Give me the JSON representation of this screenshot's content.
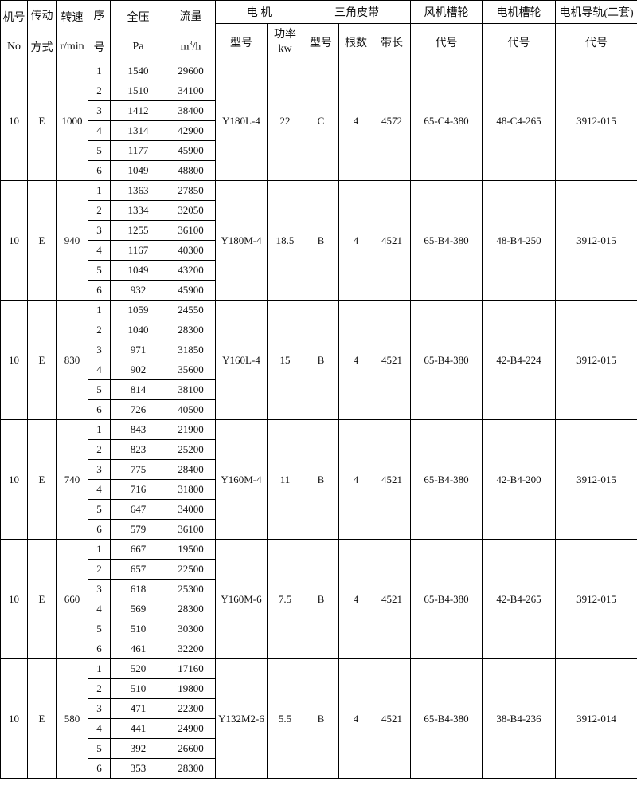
{
  "headers": {
    "machine_no": "机号",
    "machine_no_unit": "No",
    "drive": "传动",
    "drive_unit": "方式",
    "speed": "转速",
    "speed_unit": "r/min",
    "seq": "序",
    "seq_unit": "号",
    "pressure": "全压",
    "pressure_unit": "Pa",
    "flow": "流量",
    "flow_unit_base": "m",
    "flow_unit_sup": "3",
    "flow_unit_tail": "/h",
    "motor": "电  机",
    "motor_model": "型号",
    "motor_power": "功率",
    "motor_power_unit": "kw",
    "vbelt": "三角皮带",
    "belt_type": "型号",
    "belt_count": "根数",
    "belt_length": "带长",
    "fan_pulley": "风机槽轮",
    "fan_pulley_code": "代号",
    "motor_pulley": "电机槽轮",
    "motor_pulley_code": "代号",
    "motor_rail": "电机导轨(二套)",
    "motor_rail_code": "代号"
  },
  "groups": [
    {
      "no": "10",
      "drive": "E",
      "speed": "1000",
      "motor": "Y180L-4",
      "power": "22",
      "belt_type": "C",
      "belt_count": "4",
      "belt_length": "4572",
      "fan_pulley": "65-C4-380",
      "motor_pulley": "48-C4-265",
      "rail": "3912-015",
      "rows": [
        [
          "1",
          "1540",
          "29600"
        ],
        [
          "2",
          "1510",
          "34100"
        ],
        [
          "3",
          "1412",
          "38400"
        ],
        [
          "4",
          "1314",
          "42900"
        ],
        [
          "5",
          "1177",
          "45900"
        ],
        [
          "6",
          "1049",
          "48800"
        ]
      ]
    },
    {
      "no": "10",
      "drive": "E",
      "speed": "940",
      "motor": "Y180M-4",
      "power": "18.5",
      "belt_type": "B",
      "belt_count": "4",
      "belt_length": "4521",
      "fan_pulley": "65-B4-380",
      "motor_pulley": "48-B4-250",
      "rail": "3912-015",
      "rows": [
        [
          "1",
          "1363",
          "27850"
        ],
        [
          "2",
          "1334",
          "32050"
        ],
        [
          "3",
          "1255",
          "36100"
        ],
        [
          "4",
          "1167",
          "40300"
        ],
        [
          "5",
          "1049",
          "43200"
        ],
        [
          "6",
          "932",
          "45900"
        ]
      ]
    },
    {
      "no": "10",
      "drive": "E",
      "speed": "830",
      "motor": "Y160L-4",
      "power": "15",
      "belt_type": "B",
      "belt_count": "4",
      "belt_length": "4521",
      "fan_pulley": "65-B4-380",
      "motor_pulley": "42-B4-224",
      "rail": "3912-015",
      "rows": [
        [
          "1",
          "1059",
          "24550"
        ],
        [
          "2",
          "1040",
          "28300"
        ],
        [
          "3",
          "971",
          "31850"
        ],
        [
          "4",
          "902",
          "35600"
        ],
        [
          "5",
          "814",
          "38100"
        ],
        [
          "6",
          "726",
          "40500"
        ]
      ]
    },
    {
      "no": "10",
      "drive": "E",
      "speed": "740",
      "motor": "Y160M-4",
      "power": "11",
      "belt_type": "B",
      "belt_count": "4",
      "belt_length": "4521",
      "fan_pulley": "65-B4-380",
      "motor_pulley": "42-B4-200",
      "rail": "3912-015",
      "rows": [
        [
          "1",
          "843",
          "21900"
        ],
        [
          "2",
          "823",
          "25200"
        ],
        [
          "3",
          "775",
          "28400"
        ],
        [
          "4",
          "716",
          "31800"
        ],
        [
          "5",
          "647",
          "34000"
        ],
        [
          "6",
          "579",
          "36100"
        ]
      ]
    },
    {
      "no": "10",
      "drive": "E",
      "speed": "660",
      "motor": "Y160M-6",
      "power": "7.5",
      "belt_type": "B",
      "belt_count": "4",
      "belt_length": "4521",
      "fan_pulley": "65-B4-380",
      "motor_pulley": "42-B4-265",
      "rail": "3912-015",
      "rows": [
        [
          "1",
          "667",
          "19500"
        ],
        [
          "2",
          "657",
          "22500"
        ],
        [
          "3",
          "618",
          "25300"
        ],
        [
          "4",
          "569",
          "28300"
        ],
        [
          "5",
          "510",
          "30300"
        ],
        [
          "6",
          "461",
          "32200"
        ]
      ]
    },
    {
      "no": "10",
      "drive": "E",
      "speed": "580",
      "motor": "Y132M2-6",
      "power": "5.5",
      "belt_type": "B",
      "belt_count": "4",
      "belt_length": "4521",
      "fan_pulley": "65-B4-380",
      "motor_pulley": "38-B4-236",
      "rail": "3912-014",
      "rows": [
        [
          "1",
          "520",
          "17160"
        ],
        [
          "2",
          "510",
          "19800"
        ],
        [
          "3",
          "471",
          "22300"
        ],
        [
          "4",
          "441",
          "24900"
        ],
        [
          "5",
          "392",
          "26600"
        ],
        [
          "6",
          "353",
          "28300"
        ]
      ]
    }
  ]
}
